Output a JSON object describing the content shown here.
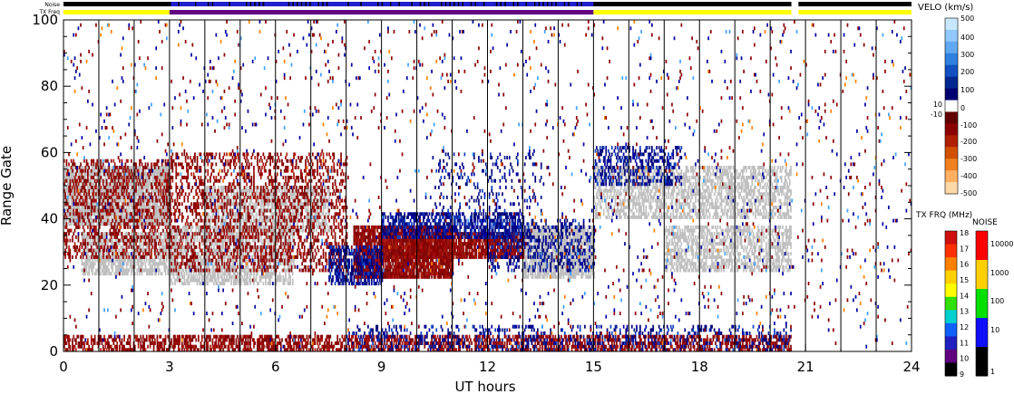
{
  "chart_data": {
    "type": "heatmap",
    "xlabel": "UT hours",
    "ylabel": "Range Gate",
    "xlim": [
      0,
      24
    ],
    "ylim": [
      0,
      100
    ],
    "x_ticks": [
      0,
      3,
      6,
      9,
      12,
      15,
      18,
      21,
      24
    ],
    "y_ticks": [
      0,
      20,
      40,
      60,
      80,
      100
    ],
    "status_bars": [
      {
        "label": "Noise"
      },
      {
        "label": "TX Freq"
      }
    ],
    "velocity_colorbar": {
      "title": "VELO (km/s)",
      "ticks": [
        "500",
        "400",
        "300",
        "200",
        "100",
        "10",
        "0",
        "-10",
        "-100",
        "-200",
        "-300",
        "-400",
        "-500"
      ]
    },
    "tx_freq_colorbar": {
      "title": "TX FRQ (MHz)",
      "ticks": [
        "18",
        "17",
        "16",
        "15",
        "14",
        "13",
        "12",
        "11",
        "10",
        "9"
      ],
      "colors": [
        "#d01010",
        "#ff3000",
        "#ff8000",
        "#ffd000",
        "#ffff00",
        "#30e000",
        "#00d0d0",
        "#1060ff",
        "#2020c0",
        "#600080",
        "#000000"
      ]
    },
    "noise_colorbar": {
      "title": "NOISE",
      "ticks": [
        "10000",
        "1000",
        "100",
        "10",
        "1"
      ],
      "colors": [
        "#ff0000",
        "#ffd000",
        "#00e000",
        "#1010ff",
        "#000000"
      ]
    },
    "ground_scatter_color": "#c0c0c0",
    "regions": [
      {
        "name": "ground scatter",
        "kind": "gs",
        "x0": 0,
        "x1": 3,
        "y0": 38,
        "y1": 56,
        "density": 0.85
      },
      {
        "name": "ground scatter",
        "kind": "gs",
        "x0": 0.5,
        "x1": 3.2,
        "y0": 23,
        "y1": 36,
        "density": 0.7
      },
      {
        "name": "ground scatter",
        "kind": "gs",
        "x0": 3,
        "x1": 6.5,
        "y0": 20,
        "y1": 38,
        "density": 0.6
      },
      {
        "name": "ground scatter",
        "kind": "gs",
        "x0": 4,
        "x1": 7.5,
        "y0": 36,
        "y1": 50,
        "density": 0.6
      },
      {
        "name": "ground scatter",
        "kind": "gs",
        "x0": 13,
        "x1": 15,
        "y0": 22,
        "y1": 38,
        "density": 0.8
      },
      {
        "name": "ground scatter",
        "kind": "gs",
        "x0": 15,
        "x1": 20.6,
        "y0": 40,
        "y1": 56,
        "density": 0.55
      },
      {
        "name": "ground scatter",
        "kind": "gs",
        "x0": 17,
        "x1": 20.6,
        "y0": 24,
        "y1": 38,
        "density": 0.55
      },
      {
        "name": "negative velocity",
        "kind": "neg",
        "x0": 0,
        "x1": 3,
        "y0": 28,
        "y1": 58,
        "density": 0.35
      },
      {
        "name": "negative velocity",
        "kind": "neg",
        "x0": 3,
        "x1": 8,
        "y0": 24,
        "y1": 60,
        "density": 0.3
      },
      {
        "name": "negative velocity",
        "kind": "neg",
        "x0": 8.2,
        "x1": 11,
        "y0": 22,
        "y1": 38,
        "density": 0.9
      },
      {
        "name": "negative velocity",
        "kind": "neg",
        "x0": 9,
        "x1": 13,
        "y0": 28,
        "y1": 36,
        "density": 0.85
      },
      {
        "name": "positive velocity",
        "kind": "pos",
        "x0": 7.5,
        "x1": 9,
        "y0": 20,
        "y1": 32,
        "density": 0.55
      },
      {
        "name": "positive velocity",
        "kind": "pos",
        "x0": 9,
        "x1": 13,
        "y0": 34,
        "y1": 42,
        "density": 0.6
      },
      {
        "name": "positive velocity",
        "kind": "pos",
        "x0": 12,
        "x1": 15,
        "y0": 24,
        "y1": 40,
        "density": 0.3
      },
      {
        "name": "positive velocity",
        "kind": "pos",
        "x0": 15,
        "x1": 17.5,
        "y0": 50,
        "y1": 62,
        "density": 0.35
      },
      {
        "name": "positive velocity",
        "kind": "pos",
        "x0": 10.5,
        "x1": 13.5,
        "y0": 42,
        "y1": 60,
        "density": 0.12
      },
      {
        "name": "near ground",
        "kind": "neg",
        "x0": 0,
        "x1": 20.6,
        "y0": 0,
        "y1": 5,
        "density": 0.55
      },
      {
        "name": "near ground",
        "kind": "pos",
        "x0": 8,
        "x1": 20.6,
        "y0": 0,
        "y1": 8,
        "density": 0.2
      },
      {
        "name": "sparse",
        "kind": "mix",
        "x0": 0,
        "x1": 24,
        "y0": 0,
        "y1": 100,
        "density": 0.025
      }
    ]
  }
}
